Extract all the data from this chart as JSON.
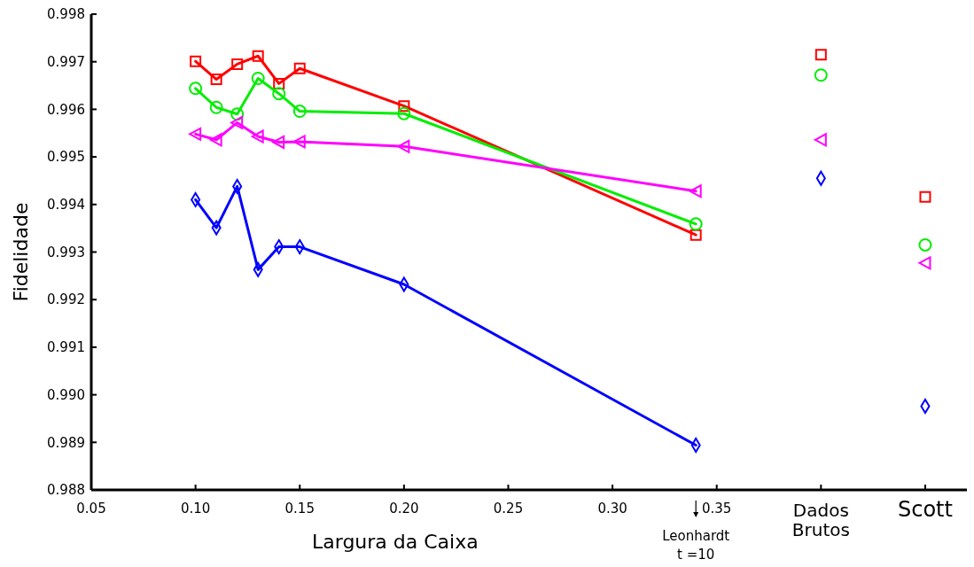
{
  "chart_data": {
    "type": "line",
    "xlabel": "Largura da Caixa",
    "ylabel": "Fidelidade",
    "xlim": [
      0.05,
      0.47
    ],
    "ylim": [
      0.988,
      0.998
    ],
    "xticks": [
      0.05,
      {
        "value": 0.1,
        "label": "0.10"
      },
      0.15,
      {
        "value": 0.2,
        "label": "0.20"
      },
      0.25,
      {
        "value": 0.3,
        "label": "0.30"
      },
      0.35,
      {
        "value": 0.4,
        "label": "Dados Brutos"
      },
      {
        "value": 0.45,
        "label": "Scott"
      }
    ],
    "yticks": [
      0.988,
      0.989,
      {
        "value": 0.99,
        "label": "0.990"
      },
      0.991,
      0.992,
      0.993,
      0.994,
      0.995,
      0.996,
      0.997,
      0.998
    ],
    "grid": false,
    "annotations": [
      "Leonhardt t =10"
    ],
    "series": [
      {
        "color": "#ff0000",
        "marker": "square",
        "x": [
          0.1,
          0.11,
          0.12,
          0.13,
          0.14,
          0.15,
          0.2,
          0.34
        ],
        "values": [
          0.99701,
          0.99663,
          0.99695,
          0.99712,
          0.99654,
          0.99686,
          0.99607,
          0.99336
        ]
      },
      {
        "color": "#00ee00",
        "marker": "circle",
        "x": [
          0.1,
          0.11,
          0.12,
          0.13,
          0.14,
          0.15,
          0.2,
          0.34
        ],
        "values": [
          0.99644,
          0.99604,
          0.9959,
          0.99665,
          0.99633,
          0.99596,
          0.99591,
          0.99359
        ]
      },
      {
        "color": "#ff00ff",
        "marker": "triangle",
        "x": [
          0.1,
          0.11,
          0.12,
          0.13,
          0.14,
          0.15,
          0.2,
          0.34
        ],
        "values": [
          0.99548,
          0.99536,
          0.99572,
          0.99543,
          0.99531,
          0.99532,
          0.99522,
          0.99428
        ]
      },
      {
        "color": "#0000ff",
        "marker": "diamond",
        "x": [
          0.1,
          0.11,
          0.12,
          0.13,
          0.14,
          0.15,
          0.2,
          0.34
        ],
        "values": [
          0.9941,
          0.99351,
          0.99438,
          0.99263,
          0.99311,
          0.99311,
          0.99232,
          0.98894
        ]
      },
      {
        "type": "scatter",
        "color": "#ff0000",
        "marker": "square",
        "x": [
          0.4,
          0.45
        ],
        "values": [
          0.99715,
          0.99416
        ]
      },
      {
        "type": "scatter",
        "color": "#00ee00",
        "marker": "circle",
        "x": [
          0.4,
          0.45
        ],
        "values": [
          0.99672,
          0.99315
        ]
      },
      {
        "type": "scatter",
        "color": "#ff00ff",
        "marker": "triangle",
        "x": [
          0.4,
          0.45
        ],
        "values": [
          0.99536,
          0.99277
        ]
      },
      {
        "type": "scatter",
        "color": "#0000ff",
        "marker": "diamond",
        "x": [
          0.4,
          0.45
        ],
        "values": [
          0.99455,
          0.98976
        ]
      }
    ]
  }
}
